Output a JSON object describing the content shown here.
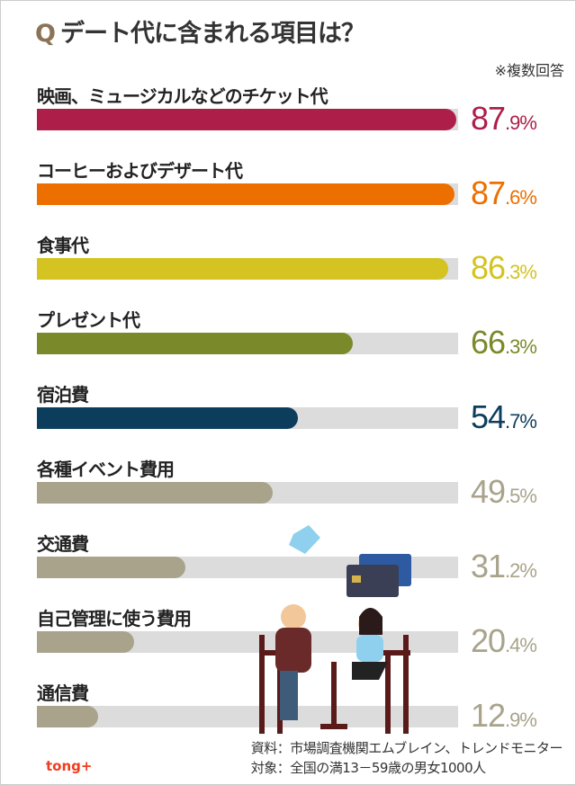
{
  "title": {
    "q": "Q",
    "text": "デート代に含まれる項目は？"
  },
  "note": "※複数回答",
  "chart_data": {
    "type": "bar",
    "orientation": "horizontal",
    "title": "デート代に含まれる項目は？",
    "unit": "%",
    "categories": [
      "映画、ミュージカルなどのチケット代",
      "コーヒーおよびデザート代",
      "食事代",
      "プレゼント代",
      "宿泊費",
      "各種イベント費用",
      "交通費",
      "自己管理に使う費用",
      "通信費"
    ],
    "values": [
      87.9,
      87.6,
      86.3,
      66.3,
      54.7,
      49.5,
      31.2,
      20.4,
      12.9
    ],
    "value_labels": [
      [
        "87",
        ".9%"
      ],
      [
        "87",
        ".6%"
      ],
      [
        "86",
        ".3%"
      ],
      [
        "66",
        ".3%"
      ],
      [
        "54",
        ".7%"
      ],
      [
        "49",
        ".5%"
      ],
      [
        "31",
        ".2%"
      ],
      [
        "20",
        ".4%"
      ],
      [
        "12",
        ".9%"
      ]
    ],
    "colors": [
      "#ad1f48",
      "#ec6f00",
      "#d4c320",
      "#7a8a2a",
      "#0d3d5c",
      "#a8a38a",
      "#a8a38a",
      "#a8a38a",
      "#a8a38a"
    ]
  },
  "source": {
    "line1": "資料：市場調査機関エムブレイン、トレンドモニター",
    "line2": "対象：全国の満13－59歳の男女1000人"
  },
  "logo": "tong+"
}
